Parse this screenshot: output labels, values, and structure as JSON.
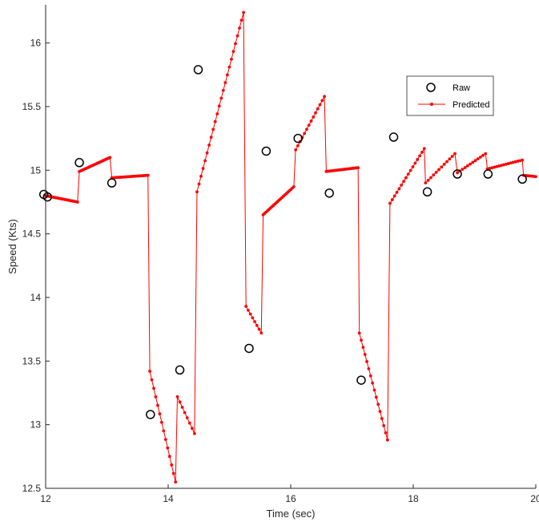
{
  "chart_data": {
    "type": "line",
    "title": "",
    "xlabel": "Time (sec)",
    "ylabel": "Speed (Kts)",
    "xlim": [
      12,
      20
    ],
    "ylim": [
      12.5,
      16.3
    ],
    "xticks": [
      12,
      14,
      16,
      18,
      20
    ],
    "yticks": [
      12.5,
      13,
      13.5,
      14,
      14.5,
      15,
      15.5,
      16
    ],
    "grid": false,
    "legend_position": "top-right",
    "colors": {
      "raw": "#000000",
      "predicted": "#ff0000",
      "axis": "#262626"
    },
    "series": [
      {
        "name": "Raw",
        "style": "open-circle",
        "x": [
          11.97,
          12.03,
          12.55,
          13.08,
          13.71,
          14.19,
          14.49,
          15.32,
          15.6,
          16.12,
          16.63,
          17.15,
          17.68,
          18.23,
          18.72,
          19.22,
          19.78
        ],
        "y": [
          14.81,
          14.79,
          15.06,
          14.9,
          13.08,
          13.43,
          15.79,
          13.6,
          15.15,
          15.25,
          14.82,
          13.35,
          15.26,
          14.83,
          14.97,
          14.97,
          14.93
        ]
      },
      {
        "name": "Predicted",
        "style": "line-dots",
        "segments": [
          {
            "x0": 12.0,
            "x1": 12.52,
            "y0": 14.8,
            "y1": 14.75,
            "n": 24
          },
          {
            "x0": 12.55,
            "x1": 13.05,
            "y0": 14.99,
            "y1": 15.1,
            "n": 22
          },
          {
            "x0": 13.08,
            "x1": 13.67,
            "y0": 14.94,
            "y1": 14.96,
            "n": 26
          },
          {
            "x0": 13.7,
            "x1": 14.12,
            "y0": 13.42,
            "y1": 12.55,
            "n": 14
          },
          {
            "x0": 14.15,
            "x1": 14.43,
            "y0": 13.22,
            "y1": 12.93,
            "n": 8
          },
          {
            "x0": 14.47,
            "x1": 15.23,
            "y0": 14.83,
            "y1": 16.24,
            "n": 24
          },
          {
            "x0": 15.27,
            "x1": 15.52,
            "y0": 13.93,
            "y1": 13.72,
            "n": 8
          },
          {
            "x0": 15.55,
            "x1": 16.05,
            "y0": 14.65,
            "y1": 14.87,
            "n": 22
          },
          {
            "x0": 16.08,
            "x1": 16.55,
            "y0": 15.16,
            "y1": 15.58,
            "n": 14
          },
          {
            "x0": 16.58,
            "x1": 17.1,
            "y0": 14.99,
            "y1": 15.02,
            "n": 24
          },
          {
            "x0": 17.12,
            "x1": 17.58,
            "y0": 13.72,
            "y1": 12.88,
            "n": 16
          },
          {
            "x0": 17.62,
            "x1": 18.18,
            "y0": 14.74,
            "y1": 15.17,
            "n": 16
          },
          {
            "x0": 18.2,
            "x1": 18.68,
            "y0": 14.9,
            "y1": 15.13,
            "n": 12
          },
          {
            "x0": 18.72,
            "x1": 19.18,
            "y0": 14.98,
            "y1": 15.13,
            "n": 12
          },
          {
            "x0": 19.21,
            "x1": 19.78,
            "y0": 15.01,
            "y1": 15.08,
            "n": 16
          },
          {
            "x0": 19.8,
            "x1": 20.0,
            "y0": 14.96,
            "y1": 14.95,
            "n": 8
          }
        ]
      }
    ]
  }
}
